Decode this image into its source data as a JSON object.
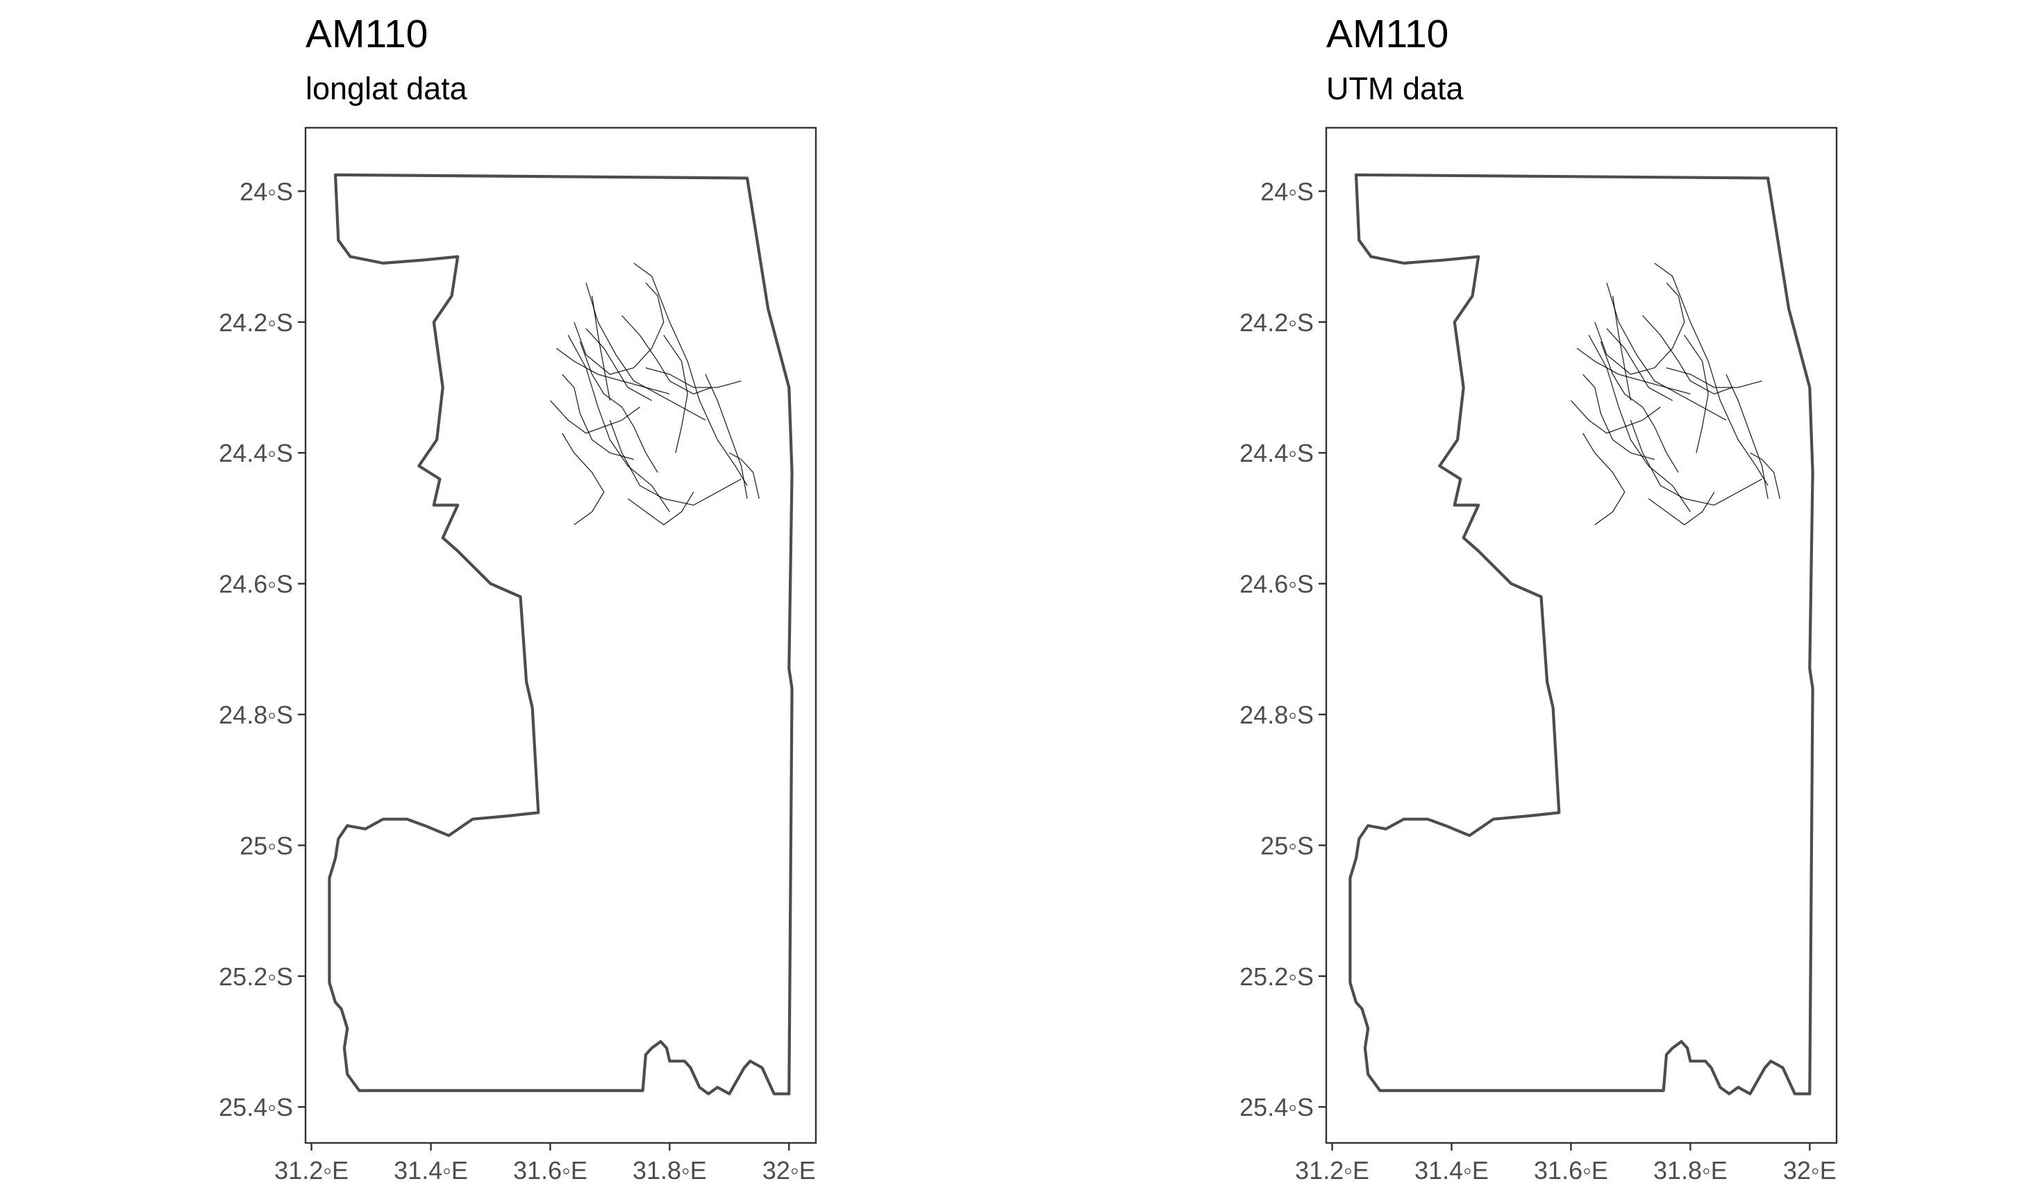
{
  "chart_data": [
    {
      "type": "map",
      "title": "AM110",
      "subtitle": "longlat data",
      "x_ticks": [
        {
          "value": 31.2,
          "label": "31.2◦E"
        },
        {
          "value": 31.4,
          "label": "31.4◦E"
        },
        {
          "value": 31.6,
          "label": "31.6◦E"
        },
        {
          "value": 31.8,
          "label": "31.8◦E"
        },
        {
          "value": 32.0,
          "label": "32◦E"
        }
      ],
      "y_ticks": [
        {
          "value": -24.0,
          "label": "24◦S"
        },
        {
          "value": -24.2,
          "label": "24.2◦S"
        },
        {
          "value": -24.4,
          "label": "24.4◦S"
        },
        {
          "value": -24.6,
          "label": "24.6◦S"
        },
        {
          "value": -24.8,
          "label": "24.8◦S"
        },
        {
          "value": -25.0,
          "label": "25◦S"
        },
        {
          "value": -25.2,
          "label": "25.2◦S"
        },
        {
          "value": -25.4,
          "label": "25.4◦S"
        }
      ],
      "xlim": [
        31.19,
        32.045
      ],
      "ylim": [
        -25.455,
        -23.903
      ],
      "grid": false
    },
    {
      "type": "map",
      "title": "AM110",
      "subtitle": "UTM data",
      "x_ticks": [
        {
          "value": 31.2,
          "label": "31.2◦E"
        },
        {
          "value": 31.4,
          "label": "31.4◦E"
        },
        {
          "value": 31.6,
          "label": "31.6◦E"
        },
        {
          "value": 31.8,
          "label": "31.8◦E"
        },
        {
          "value": 32.0,
          "label": "32◦E"
        }
      ],
      "y_ticks": [
        {
          "value": -24.0,
          "label": "24◦S"
        },
        {
          "value": -24.2,
          "label": "24.2◦S"
        },
        {
          "value": -24.4,
          "label": "24.4◦S"
        },
        {
          "value": -24.6,
          "label": "24.6◦S"
        },
        {
          "value": -24.8,
          "label": "24.8◦S"
        },
        {
          "value": -25.0,
          "label": "25◦S"
        },
        {
          "value": -25.2,
          "label": "25.2◦S"
        },
        {
          "value": -25.4,
          "label": "25.4◦S"
        }
      ],
      "xlim": [
        31.19,
        32.045
      ],
      "ylim": [
        -25.455,
        -23.903
      ],
      "grid": false
    }
  ],
  "boundary": [
    [
      31.24,
      -23.975
    ],
    [
      31.93,
      -23.98
    ],
    [
      31.965,
      -24.18
    ],
    [
      32.0,
      -24.3
    ],
    [
      32.005,
      -24.43
    ],
    [
      32.0,
      -24.73
    ],
    [
      32.005,
      -24.76
    ],
    [
      32.0,
      -25.38
    ],
    [
      31.975,
      -25.38
    ],
    [
      31.955,
      -25.34
    ],
    [
      31.935,
      -25.33
    ],
    [
      31.925,
      -25.34
    ],
    [
      31.9,
      -25.38
    ],
    [
      31.88,
      -25.37
    ],
    [
      31.865,
      -25.38
    ],
    [
      31.85,
      -25.37
    ],
    [
      31.835,
      -25.34
    ],
    [
      31.825,
      -25.33
    ],
    [
      31.8,
      -25.33
    ],
    [
      31.795,
      -25.31
    ],
    [
      31.785,
      -25.3
    ],
    [
      31.77,
      -25.31
    ],
    [
      31.76,
      -25.32
    ],
    [
      31.755,
      -25.375
    ],
    [
      31.28,
      -25.375
    ],
    [
      31.26,
      -25.35
    ],
    [
      31.255,
      -25.31
    ],
    [
      31.26,
      -25.28
    ],
    [
      31.25,
      -25.25
    ],
    [
      31.24,
      -25.24
    ],
    [
      31.23,
      -25.21
    ],
    [
      31.23,
      -25.05
    ],
    [
      31.24,
      -25.02
    ],
    [
      31.245,
      -24.99
    ],
    [
      31.26,
      -24.97
    ],
    [
      31.29,
      -24.975
    ],
    [
      31.32,
      -24.96
    ],
    [
      31.36,
      -24.96
    ],
    [
      31.39,
      -24.97
    ],
    [
      31.43,
      -24.985
    ],
    [
      31.47,
      -24.96
    ],
    [
      31.53,
      -24.955
    ],
    [
      31.58,
      -24.95
    ],
    [
      31.57,
      -24.79
    ],
    [
      31.56,
      -24.75
    ],
    [
      31.55,
      -24.62
    ],
    [
      31.5,
      -24.6
    ],
    [
      31.445,
      -24.55
    ],
    [
      31.42,
      -24.53
    ],
    [
      31.445,
      -24.48
    ],
    [
      31.405,
      -24.48
    ],
    [
      31.415,
      -24.44
    ],
    [
      31.38,
      -24.42
    ],
    [
      31.41,
      -24.38
    ],
    [
      31.42,
      -24.3
    ],
    [
      31.405,
      -24.2
    ],
    [
      31.435,
      -24.16
    ],
    [
      31.445,
      -24.1
    ],
    [
      31.39,
      -24.105
    ],
    [
      31.32,
      -24.11
    ],
    [
      31.265,
      -24.1
    ],
    [
      31.245,
      -24.075
    ],
    [
      31.24,
      -23.975
    ]
  ],
  "tracks": [
    [
      [
        31.74,
        -24.11
      ],
      [
        31.77,
        -24.13
      ],
      [
        31.8,
        -24.2
      ],
      [
        31.83,
        -24.26
      ],
      [
        31.85,
        -24.32
      ],
      [
        31.88,
        -24.38
      ],
      [
        31.91,
        -24.42
      ],
      [
        31.93,
        -24.45
      ]
    ],
    [
      [
        31.66,
        -24.14
      ],
      [
        31.68,
        -24.2
      ],
      [
        31.71,
        -24.25
      ],
      [
        31.74,
        -24.29
      ],
      [
        31.78,
        -24.31
      ],
      [
        31.82,
        -24.33
      ],
      [
        31.86,
        -24.35
      ]
    ],
    [
      [
        31.63,
        -24.22
      ],
      [
        31.66,
        -24.27
      ],
      [
        31.68,
        -24.33
      ],
      [
        31.7,
        -24.38
      ],
      [
        31.73,
        -24.42
      ],
      [
        31.77,
        -24.45
      ],
      [
        31.8,
        -24.49
      ]
    ],
    [
      [
        31.61,
        -24.24
      ],
      [
        31.64,
        -24.26
      ],
      [
        31.68,
        -24.28
      ],
      [
        31.72,
        -24.29
      ],
      [
        31.76,
        -24.3
      ],
      [
        31.8,
        -24.31
      ]
    ],
    [
      [
        31.64,
        -24.2
      ],
      [
        31.66,
        -24.25
      ],
      [
        31.7,
        -24.28
      ],
      [
        31.74,
        -24.27
      ],
      [
        31.77,
        -24.24
      ],
      [
        31.79,
        -24.2
      ],
      [
        31.78,
        -24.16
      ],
      [
        31.76,
        -24.14
      ]
    ],
    [
      [
        31.6,
        -24.32
      ],
      [
        31.63,
        -24.35
      ],
      [
        31.66,
        -24.37
      ],
      [
        31.69,
        -24.36
      ],
      [
        31.72,
        -24.35
      ],
      [
        31.75,
        -24.33
      ]
    ],
    [
      [
        31.7,
        -24.35
      ],
      [
        31.72,
        -24.4
      ],
      [
        31.75,
        -24.45
      ],
      [
        31.79,
        -24.47
      ],
      [
        31.84,
        -24.48
      ],
      [
        31.88,
        -24.46
      ],
      [
        31.92,
        -24.44
      ]
    ],
    [
      [
        31.79,
        -24.22
      ],
      [
        31.82,
        -24.26
      ],
      [
        31.83,
        -24.31
      ],
      [
        31.82,
        -24.36
      ],
      [
        31.81,
        -24.4
      ]
    ],
    [
      [
        31.86,
        -24.28
      ],
      [
        31.88,
        -24.32
      ],
      [
        31.9,
        -24.37
      ],
      [
        31.92,
        -24.42
      ],
      [
        31.93,
        -24.47
      ]
    ],
    [
      [
        31.65,
        -24.23
      ],
      [
        31.67,
        -24.28
      ],
      [
        31.69,
        -24.31
      ],
      [
        31.72,
        -24.33
      ],
      [
        31.74,
        -24.36
      ],
      [
        31.76,
        -24.4
      ],
      [
        31.78,
        -24.43
      ]
    ],
    [
      [
        31.67,
        -24.16
      ],
      [
        31.68,
        -24.22
      ],
      [
        31.69,
        -24.27
      ],
      [
        31.7,
        -24.32
      ]
    ],
    [
      [
        31.72,
        -24.19
      ],
      [
        31.75,
        -24.22
      ],
      [
        31.78,
        -24.26
      ],
      [
        31.8,
        -24.29
      ],
      [
        31.84,
        -24.31
      ],
      [
        31.87,
        -24.3
      ]
    ],
    [
      [
        31.62,
        -24.28
      ],
      [
        31.64,
        -24.3
      ],
      [
        31.65,
        -24.34
      ],
      [
        31.67,
        -24.38
      ],
      [
        31.7,
        -24.4
      ],
      [
        31.74,
        -24.41
      ]
    ],
    [
      [
        31.73,
        -24.47
      ],
      [
        31.76,
        -24.49
      ],
      [
        31.79,
        -24.51
      ],
      [
        31.82,
        -24.49
      ],
      [
        31.84,
        -24.46
      ]
    ],
    [
      [
        31.9,
        -24.4
      ],
      [
        31.92,
        -24.41
      ],
      [
        31.94,
        -24.43
      ],
      [
        31.95,
        -24.47
      ]
    ],
    [
      [
        31.62,
        -24.37
      ],
      [
        31.64,
        -24.4
      ],
      [
        31.67,
        -24.43
      ],
      [
        31.69,
        -24.46
      ],
      [
        31.67,
        -24.49
      ],
      [
        31.64,
        -24.51
      ]
    ],
    [
      [
        31.76,
        -24.27
      ],
      [
        31.8,
        -24.28
      ],
      [
        31.84,
        -24.3
      ],
      [
        31.88,
        -24.3
      ],
      [
        31.92,
        -24.29
      ]
    ],
    [
      [
        31.66,
        -24.21
      ],
      [
        31.69,
        -24.24
      ],
      [
        31.71,
        -24.27
      ],
      [
        31.73,
        -24.3
      ],
      [
        31.77,
        -24.32
      ]
    ]
  ]
}
